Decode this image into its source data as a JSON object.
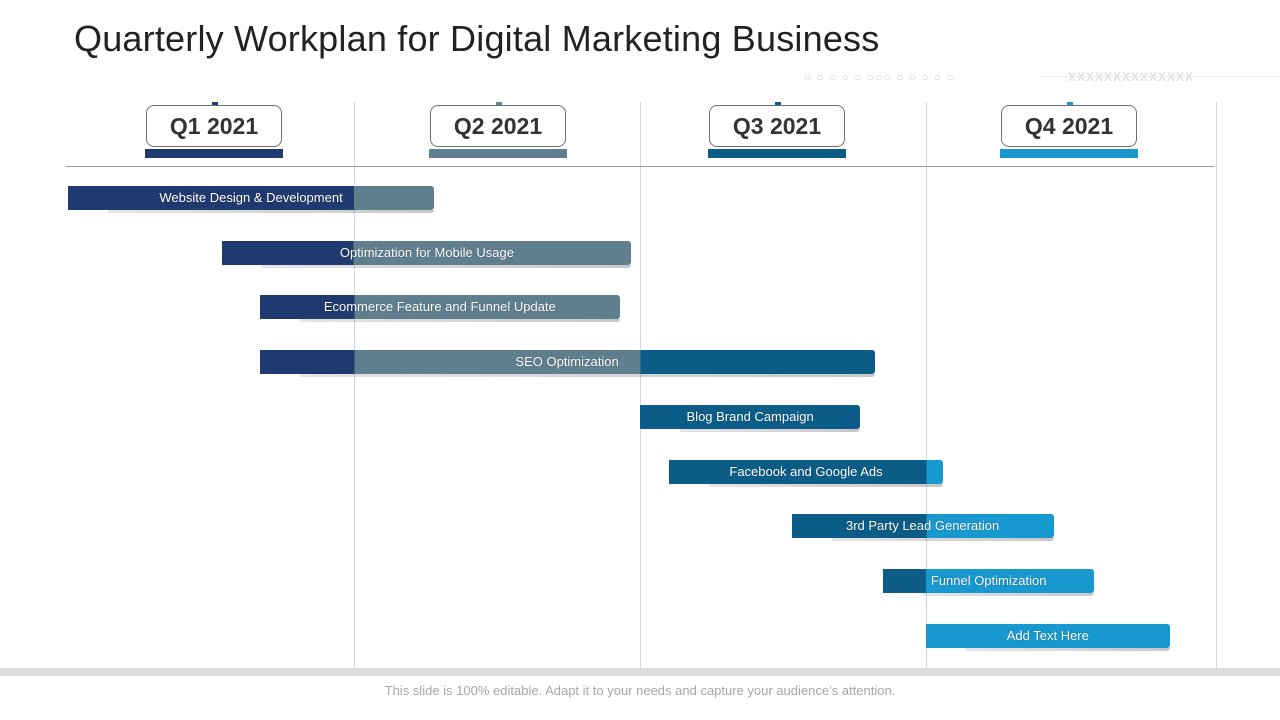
{
  "title": "Quarterly Workplan for Digital Marketing Business",
  "decoration": {
    "circles": "○ ○ ○ ○ ○ ○○○ ○ ○ ○ ○ ○",
    "crosses": "XXXXXXXXXXXXXX"
  },
  "quarters": [
    {
      "label": "Q1 2021",
      "color": "#1f3a6e"
    },
    {
      "label": "Q2 2021",
      "color": "#5f7e8e"
    },
    {
      "label": "Q3 2021",
      "color": "#0b5c86"
    },
    {
      "label": "Q4 2021",
      "color": "#1798cf"
    }
  ],
  "tasks": [
    {
      "label": "Website Design & Development",
      "start": 0.0,
      "end": 1.28
    },
    {
      "label": "Optimization for Mobile Usage",
      "start": 0.54,
      "end": 1.97
    },
    {
      "label": "Ecommerce Feature and Funnel Update",
      "start": 0.67,
      "end": 1.93
    },
    {
      "label": "SEO Optimization",
      "start": 0.67,
      "end": 2.82
    },
    {
      "label": "Blog Brand Campaign",
      "start": 2.0,
      "end": 2.77
    },
    {
      "label": "Facebook and Google Ads",
      "start": 2.1,
      "end": 3.06
    },
    {
      "label": "3rd Party Lead Generation",
      "start": 2.53,
      "end": 3.44
    },
    {
      "label": "Funnel Optimization",
      "start": 2.85,
      "end": 3.58
    },
    {
      "label": "Add Text Here",
      "start": 3.0,
      "end": 3.84
    }
  ],
  "footer": "This slide is 100% editable. Adapt it to your needs and capture your audience’s attention."
}
